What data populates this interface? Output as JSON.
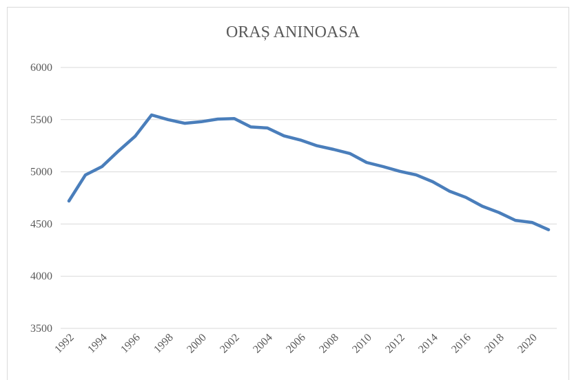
{
  "chart_data": {
    "type": "line",
    "title": "ORAȘ ANINOASA",
    "categories": [
      "1992",
      null,
      "1994",
      null,
      "1996",
      null,
      "1998",
      null,
      "2000",
      null,
      "2002",
      null,
      "2004",
      null,
      "2006",
      null,
      "2008",
      null,
      "2010",
      null,
      "2012",
      null,
      "2014",
      null,
      "2016",
      null,
      "2018",
      null,
      "2020",
      null
    ],
    "series": [
      {
        "name": "ORAȘ ANINOASA",
        "color": "#4a7ebb",
        "values": [
          4720,
          4970,
          5050,
          5200,
          5340,
          5545,
          5500,
          5465,
          5480,
          5505,
          5510,
          5430,
          5420,
          5345,
          5305,
          5250,
          5215,
          5175,
          5090,
          5050,
          5005,
          4970,
          4905,
          4815,
          4755,
          4670,
          4610,
          4535,
          4515,
          4445
        ]
      }
    ],
    "ylim": [
      3500,
      6000
    ],
    "yticks": [
      3500,
      4000,
      4500,
      5000,
      5500,
      6000
    ],
    "grid": true
  }
}
